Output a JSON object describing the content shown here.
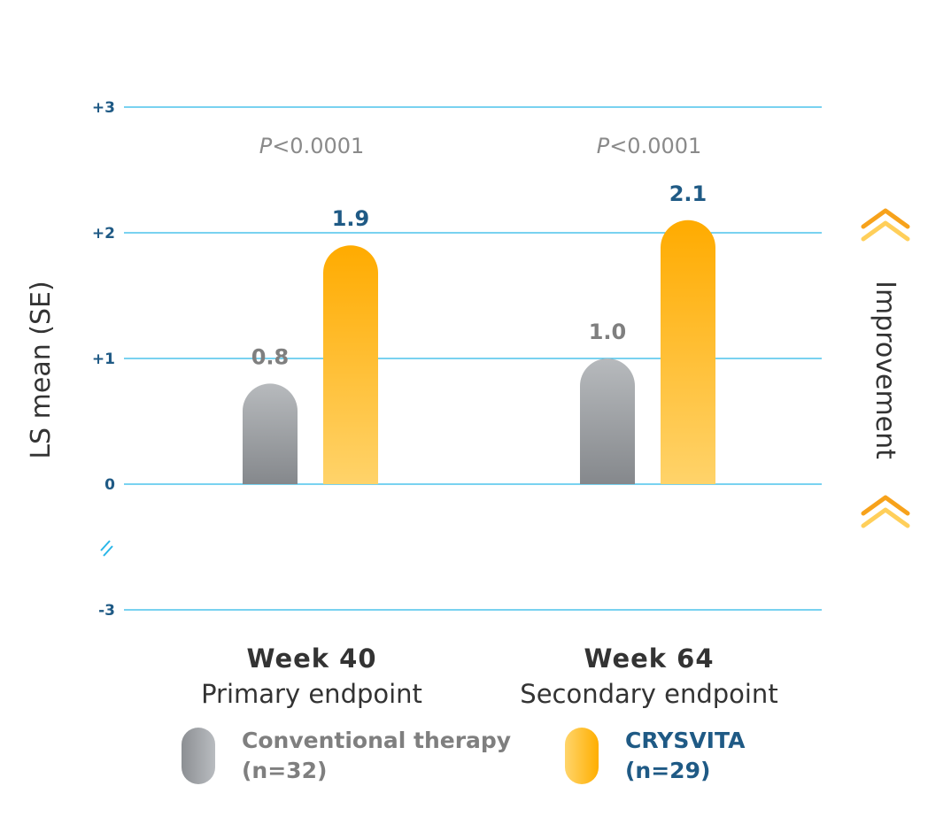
{
  "chart_data": {
    "type": "bar",
    "ylabel": "LS mean (SE)",
    "right_annotation": "Improvement",
    "y_ticks": [
      {
        "label": "+3",
        "value": 3
      },
      {
        "label": "+2",
        "value": 2
      },
      {
        "label": "+1",
        "value": 1
      },
      {
        "label": "0",
        "value": 0
      },
      {
        "label": "-3",
        "value": -3
      }
    ],
    "axis_break_between": [
      0,
      -3
    ],
    "ylim": [
      -3,
      3
    ],
    "categories": [
      {
        "title": "Week 40",
        "subtitle": "Primary endpoint",
        "p_value_prefix": "P",
        "p_value_rest": "<0.0001"
      },
      {
        "title": "Week 64",
        "subtitle": "Secondary endpoint",
        "p_value_prefix": "P",
        "p_value_rest": "<0.0001"
      }
    ],
    "series": [
      {
        "name": "Conventional therapy",
        "n_label": "(n=32)",
        "values": [
          0.8,
          1.0
        ],
        "value_labels": [
          "0.8",
          "1.0"
        ],
        "color": "#9a9da1"
      },
      {
        "name": "CRYSVITA",
        "n_label": "(n=29)",
        "values": [
          1.9,
          2.1
        ],
        "value_labels": [
          "1.9",
          "2.1"
        ],
        "color": "#ffb000"
      }
    ],
    "grid": true,
    "colors": {
      "grid": "#29b6e8",
      "tick_text": "#1f5a85",
      "arrow": "#f7a21b",
      "arrow_light": "#ffcf5a"
    }
  },
  "legend": {
    "conv_label": "Conventional therapy\n(n=32)",
    "crys_label": "CRYSVITA\n(n=29)"
  }
}
